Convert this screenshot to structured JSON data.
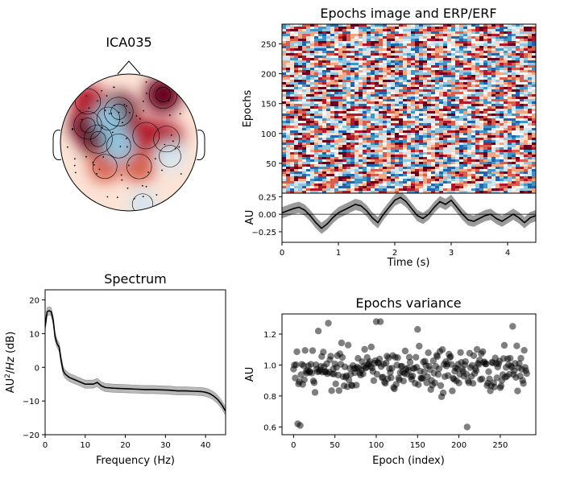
{
  "chart_data": [
    {
      "type": "heatmap",
      "component": "topomap",
      "title": "ICA035",
      "colormap": [
        "#67001f",
        "#b2182b",
        "#d6604d",
        "#f4a582",
        "#fddbc7",
        "#f7f7f7",
        "#d1e5f0",
        "#92c5de",
        "#4393c3",
        "#2166ac"
      ],
      "hotspots": [
        {
          "x": -0.15,
          "y": 0.45,
          "value": 1.0
        },
        {
          "x": -0.6,
          "y": 0.25,
          "value": 0.9
        },
        {
          "x": -0.45,
          "y": 0.05,
          "value": 0.95
        },
        {
          "x": 0.25,
          "y": 0.1,
          "value": 0.8
        },
        {
          "x": 0.55,
          "y": 0.05,
          "value": 0.75
        },
        {
          "x": -0.35,
          "y": -0.35,
          "value": 0.6
        },
        {
          "x": 0.15,
          "y": -0.35,
          "value": 0.65
        },
        {
          "x": 0.5,
          "y": 0.7,
          "value": 0.9
        },
        {
          "x": -0.6,
          "y": 0.6,
          "value": 0.7
        },
        {
          "x": -0.3,
          "y": 0.35,
          "value": -0.5
        },
        {
          "x": -0.15,
          "y": -0.05,
          "value": -0.6
        },
        {
          "x": 0.6,
          "y": -0.2,
          "value": -0.4
        },
        {
          "x": 0.2,
          "y": -0.9,
          "value": -0.3
        }
      ]
    },
    {
      "type": "heatmap",
      "component": "epochs_image",
      "title": "Epochs image and ERP/ERF",
      "ylabel": "Epochs",
      "ylim": [
        0,
        283
      ],
      "yticks": [
        50,
        100,
        150,
        200,
        250
      ],
      "n_epochs": 283,
      "xlim": [
        0,
        4.5
      ]
    },
    {
      "type": "line",
      "component": "erp",
      "xlabel": "Time (s)",
      "ylabel": "AU",
      "xlim": [
        0,
        4.5
      ],
      "ylim": [
        -0.4,
        0.3
      ],
      "xticks": [
        0,
        1,
        2,
        3,
        4
      ],
      "yticks": [
        0.25,
        0.0,
        -0.25
      ],
      "ytick_labels": [
        "0.25",
        "0.00",
        "−0.25"
      ],
      "x": [
        0,
        0.1,
        0.2,
        0.3,
        0.4,
        0.5,
        0.6,
        0.7,
        0.8,
        0.9,
        1.0,
        1.1,
        1.2,
        1.3,
        1.4,
        1.5,
        1.6,
        1.7,
        1.8,
        1.9,
        2.0,
        2.1,
        2.2,
        2.3,
        2.4,
        2.5,
        2.6,
        2.7,
        2.8,
        2.9,
        3.0,
        3.1,
        3.2,
        3.3,
        3.4,
        3.5,
        3.6,
        3.7,
        3.8,
        3.9,
        4.0,
        4.1,
        4.2,
        4.3,
        4.4,
        4.5
      ],
      "values": [
        0.02,
        0.05,
        0.08,
        0.1,
        0.06,
        -0.02,
        -0.12,
        -0.2,
        -0.14,
        -0.05,
        0.02,
        0.06,
        0.1,
        0.14,
        0.12,
        0.05,
        -0.05,
        -0.12,
        0.0,
        0.1,
        0.2,
        0.24,
        0.18,
        0.08,
        -0.02,
        -0.06,
        0.0,
        0.1,
        0.18,
        0.14,
        0.2,
        0.1,
        0.0,
        -0.08,
        -0.1,
        -0.06,
        -0.02,
        0.0,
        -0.06,
        -0.1,
        -0.05,
        0.0,
        -0.05,
        -0.12,
        -0.05,
        -0.02
      ],
      "ci": 0.08
    },
    {
      "type": "line",
      "component": "spectrum",
      "title": "Spectrum",
      "xlabel": "Frequency (Hz)",
      "ylabel_base": "AU",
      "ylabel_sup": "2",
      "ylabel_mid": "/",
      "ylabel_it": "Hz",
      "ylabel_unit": " (dB)",
      "xlim": [
        0,
        45
      ],
      "ylim": [
        -20,
        23
      ],
      "xticks": [
        0,
        10,
        20,
        30,
        40
      ],
      "yticks": [
        20,
        10,
        0,
        -10,
        -20
      ],
      "ytick_labels": [
        "20",
        "10",
        "0",
        "−10",
        "−20"
      ],
      "x": [
        0,
        0.5,
        1,
        1.5,
        2,
        2.5,
        3,
        3.5,
        4,
        4.5,
        5,
        6,
        7,
        8,
        9,
        10,
        11,
        12,
        13,
        14,
        15,
        17,
        19,
        21,
        23,
        25,
        27,
        29,
        31,
        33,
        35,
        37,
        39,
        40,
        41,
        42,
        43,
        44,
        45
      ],
      "values": [
        12,
        16.5,
        16.8,
        16.5,
        14,
        9,
        7,
        6,
        2,
        -1,
        -2,
        -3,
        -3.5,
        -4,
        -4.5,
        -5,
        -5,
        -5,
        -4.5,
        -5.5,
        -6,
        -6.2,
        -6.3,
        -6.4,
        -6.5,
        -6.6,
        -6.6,
        -6.7,
        -6.8,
        -7,
        -7,
        -7.1,
        -7.2,
        -7.4,
        -7.8,
        -8.5,
        -9.5,
        -11,
        -13
      ],
      "ci": 1.2
    },
    {
      "type": "scatter",
      "component": "variance",
      "title": "Epochs variance",
      "xlabel": "Epoch (index)",
      "ylabel": "AU",
      "xlim": [
        -14,
        293
      ],
      "ylim": [
        0.55,
        1.33
      ],
      "xticks": [
        0,
        50,
        100,
        150,
        200,
        250
      ],
      "yticks": [
        0.6,
        0.8,
        1.0,
        1.2
      ],
      "ytick_labels": [
        "0.6",
        "0.8",
        "1.0",
        "1.2"
      ],
      "n_points": 283,
      "center": 0.97,
      "spread": 0.13,
      "fixed_points": [
        [
          5,
          0.62
        ],
        [
          8,
          0.61
        ],
        [
          210,
          0.6
        ],
        [
          100,
          1.28
        ],
        [
          105,
          1.28
        ],
        [
          42,
          1.27
        ],
        [
          265,
          1.25
        ],
        [
          30,
          1.22
        ],
        [
          150,
          1.23
        ]
      ]
    }
  ]
}
